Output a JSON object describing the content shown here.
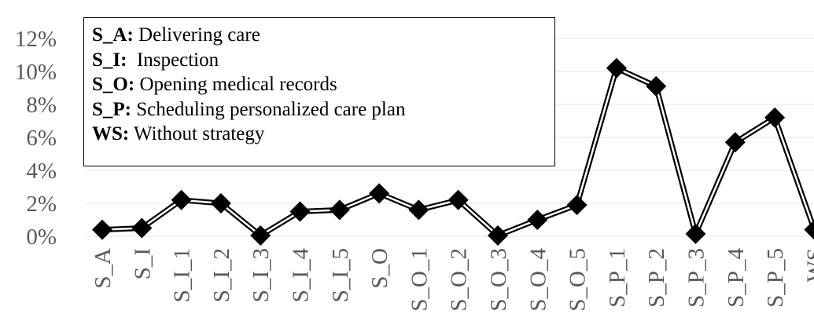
{
  "chart_data": {
    "type": "line",
    "categories": [
      "S_A",
      "S_I",
      "S_I_1",
      "S_I_2",
      "S_I_3",
      "S_I_4",
      "S_I_5",
      "S_O",
      "S_O_1",
      "S_O_2",
      "S_O_3",
      "S_O_4",
      "S_O_5",
      "S_P_1",
      "S_P_2",
      "S_P_3",
      "S_P_4",
      "S_P_5",
      "WS"
    ],
    "series": [
      {
        "values": [
          0.4,
          0.5,
          2.2,
          2.0,
          0.05,
          1.5,
          1.6,
          2.6,
          1.6,
          2.2,
          0.05,
          1.0,
          1.9,
          10.2,
          9.1,
          0.15,
          5.7,
          7.2,
          0.4
        ]
      }
    ],
    "ylim": [
      0,
      12
    ],
    "yticks": [
      "0%",
      "2%",
      "4%",
      "6%",
      "8%",
      "10%",
      "12%"
    ],
    "ytick_values": [
      0,
      2,
      4,
      6,
      8,
      10,
      12
    ],
    "grid": true,
    "marker": "diamond",
    "line_style": "double",
    "colors": {
      "line": "#000000",
      "marker": "#000000",
      "grid": "#e6e6e6",
      "axis_text": "#595959"
    }
  },
  "legend": {
    "items": [
      {
        "key": "S_A:",
        "text": " Delivering care"
      },
      {
        "key": "S_I:",
        "text": "  Inspection"
      },
      {
        "key": "S_O:",
        "text": " Opening medical records"
      },
      {
        "key": "S_P:",
        "text": " Scheduling personalized care plan"
      },
      {
        "key": "WS:",
        "text": " Without strategy"
      }
    ]
  }
}
